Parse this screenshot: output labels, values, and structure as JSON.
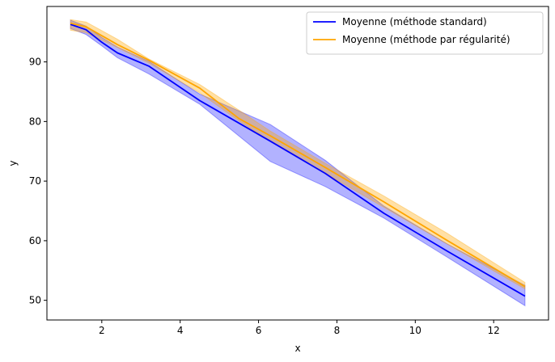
{
  "chart_data": {
    "type": "line",
    "title": "",
    "xlabel": "x",
    "ylabel": "y",
    "xlim": [
      0.6,
      13.4
    ],
    "ylim": [
      46.7,
      99.3
    ],
    "xticks": [
      2,
      4,
      6,
      8,
      10,
      12
    ],
    "yticks": [
      50,
      60,
      70,
      80,
      90
    ],
    "grid": false,
    "legend_position": "top-right",
    "series": [
      {
        "name": "Moyenne (méthode standard)",
        "color": "#0000ff",
        "band_color": "#0000ff",
        "x": [
          1.2,
          1.6,
          2.0,
          2.4,
          3.2,
          4.5,
          6.3,
          7.7,
          9.2,
          10.8,
          12.8
        ],
        "y": [
          96.3,
          95.4,
          93.3,
          91.5,
          89.3,
          83.5,
          76.7,
          71.3,
          64.6,
          58.3,
          50.7
        ],
        "lower": [
          95.6,
          94.6,
          92.7,
          90.7,
          88.0,
          82.9,
          73.3,
          69.1,
          63.8,
          57.3,
          49.1
        ],
        "upper": [
          97.0,
          96.0,
          94.1,
          92.5,
          90.1,
          84.6,
          79.5,
          73.5,
          65.8,
          59.5,
          52.5
        ]
      },
      {
        "name": "Moyenne (méthode par régularité)",
        "color": "#ffa500",
        "band_color": "#ffa500",
        "x": [
          1.2,
          1.6,
          2.4,
          3.2,
          4.5,
          5.5,
          6.3,
          7.7,
          9.2,
          10.8,
          12.8
        ],
        "y": [
          96.5,
          95.9,
          92.9,
          90.3,
          85.6,
          80.5,
          77.6,
          72.3,
          66.5,
          60.1,
          52.3
        ],
        "lower": [
          95.3,
          94.9,
          92.4,
          89.8,
          84.8,
          80.1,
          76.7,
          71.3,
          65.6,
          59.5,
          51.9
        ],
        "upper": [
          97.1,
          96.7,
          93.8,
          90.5,
          86.2,
          81.9,
          78.4,
          73.0,
          67.5,
          61.3,
          53.0
        ]
      }
    ]
  }
}
